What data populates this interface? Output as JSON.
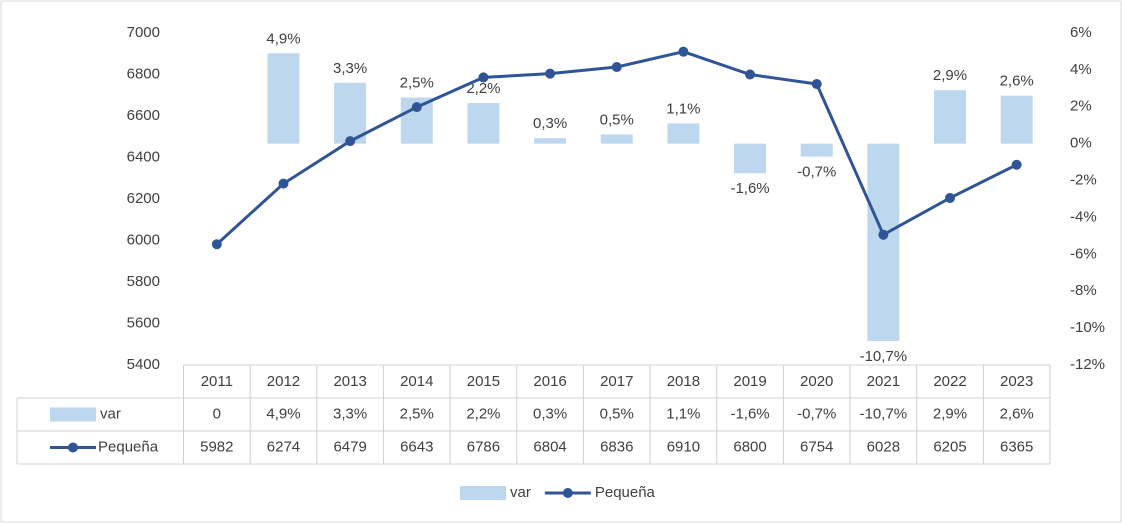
{
  "chart_data": {
    "type": "bar+line",
    "categories": [
      "2011",
      "2012",
      "2013",
      "2014",
      "2015",
      "2016",
      "2017",
      "2018",
      "2019",
      "2020",
      "2021",
      "2022",
      "2023"
    ],
    "series": [
      {
        "name": "var",
        "type": "bar",
        "axis": "y2",
        "color": "#bdd7ee",
        "values": [
          0,
          4.9,
          3.3,
          2.5,
          2.2,
          0.3,
          0.5,
          1.1,
          -1.6,
          -0.7,
          -10.7,
          2.9,
          2.6
        ],
        "value_labels": [
          "0",
          "4,9%",
          "3,3%",
          "2,5%",
          "2,2%",
          "0,3%",
          "0,5%",
          "1,1%",
          "-1,6%",
          "-0,7%",
          "-10,7%",
          "2,9%",
          "2,6%"
        ]
      },
      {
        "name": "Pequeña",
        "type": "line",
        "axis": "y",
        "color": "#2f5597",
        "values": [
          5982,
          6274,
          6479,
          6643,
          6786,
          6804,
          6836,
          6910,
          6800,
          6754,
          6028,
          6205,
          6365
        ]
      }
    ],
    "ylim": [
      5400,
      7000
    ],
    "yticks": [
      5400,
      5600,
      5800,
      6000,
      6200,
      6400,
      6600,
      6800,
      7000
    ],
    "y2lim": [
      -12,
      6
    ],
    "y2ticks": [
      {
        "value": -12,
        "label": "-12%"
      },
      {
        "value": -10,
        "label": "-10%"
      },
      {
        "value": -8,
        "label": "-8%"
      },
      {
        "value": -6,
        "label": "-6%"
      },
      {
        "value": -4,
        "label": "-4%"
      },
      {
        "value": -2,
        "label": "-2%"
      },
      {
        "value": 0,
        "label": "0%"
      },
      {
        "value": 2,
        "label": "2%"
      },
      {
        "value": 4,
        "label": "4%"
      },
      {
        "value": 6,
        "label": "6%"
      }
    ],
    "grid": false,
    "legend": "bottom"
  }
}
